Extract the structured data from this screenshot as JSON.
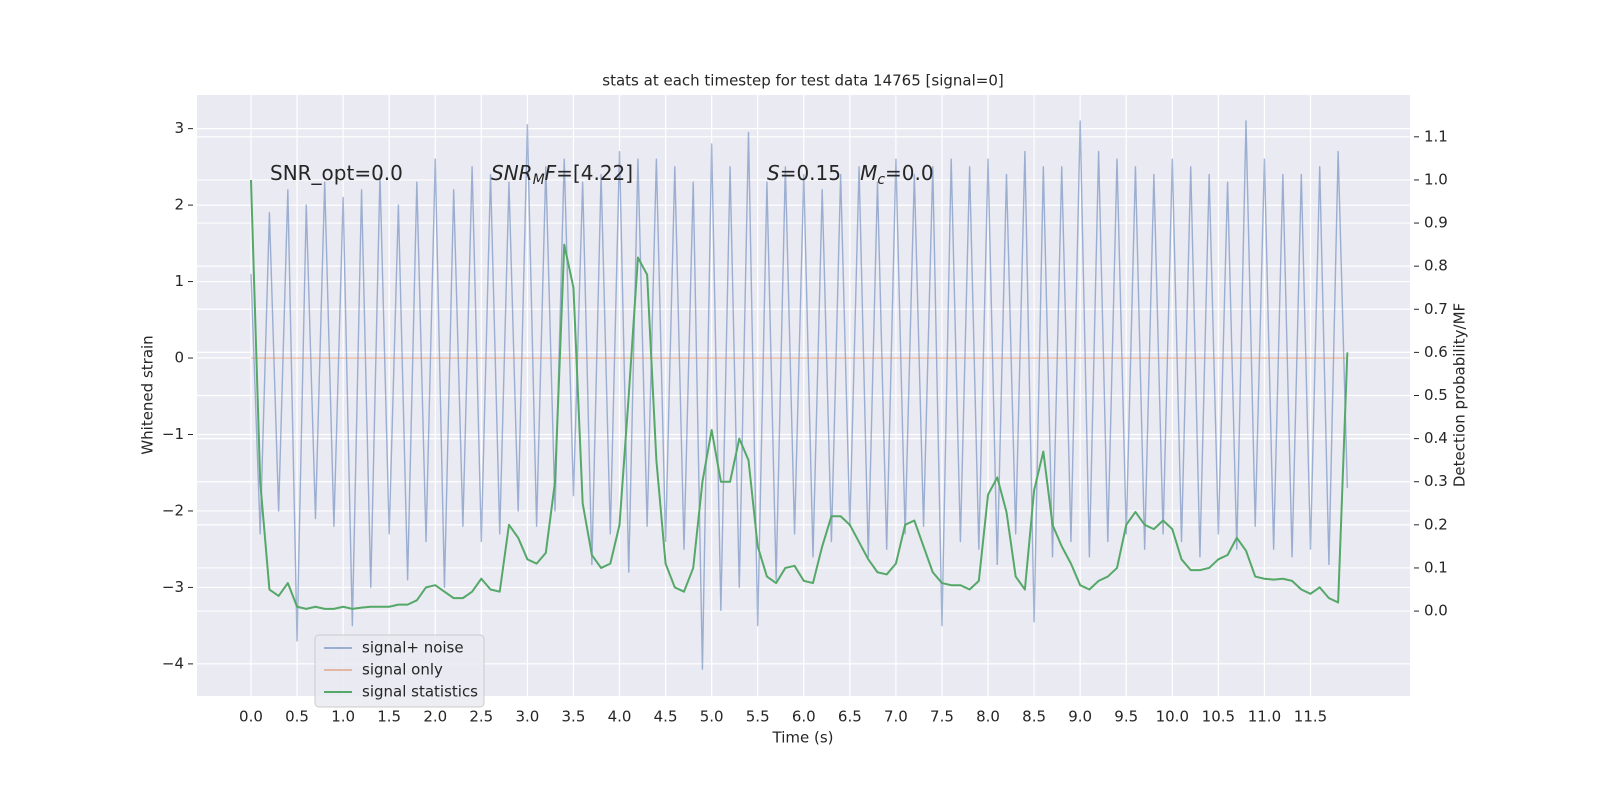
{
  "chart_data": {
    "type": "line",
    "title": "stats at each timestep for test data 14765 [signal=0]",
    "xlabel": "Time (s)",
    "ylabel": "Whitened strain",
    "y2label": "Detection probability/MF",
    "annotations": [
      [
        {
          "text": "SNR_opt=0.0",
          "style": "normal"
        }
      ],
      [
        {
          "text": "SNR",
          "style": "italic"
        },
        {
          "text": "M",
          "style": "sub"
        },
        {
          "text": "F",
          "style": "italic"
        },
        {
          "text": "=[4.22]",
          "style": "normal"
        }
      ],
      [
        {
          "text": "S",
          "style": "italic"
        },
        {
          "text": "=0.15   ",
          "style": "normal"
        },
        {
          "text": "M",
          "style": "italic"
        },
        {
          "text": "c",
          "style": "sub"
        },
        {
          "text": "=0.0",
          "style": "normal"
        }
      ]
    ],
    "x": [
      0.0,
      0.1,
      0.2,
      0.3,
      0.4,
      0.5,
      0.6,
      0.7,
      0.8,
      0.9,
      1.0,
      1.1,
      1.2,
      1.3,
      1.4,
      1.5,
      1.6,
      1.7,
      1.8,
      1.9,
      2.0,
      2.1,
      2.2,
      2.3,
      2.4,
      2.5,
      2.6,
      2.7,
      2.8,
      2.9,
      3.0,
      3.1,
      3.2,
      3.3,
      3.4,
      3.5,
      3.6,
      3.7,
      3.8,
      3.9,
      4.0,
      4.1,
      4.2,
      4.3,
      4.4,
      4.5,
      4.6,
      4.7,
      4.8,
      4.9,
      5.0,
      5.1,
      5.2,
      5.3,
      5.4,
      5.5,
      5.6,
      5.7,
      5.8,
      5.9,
      6.0,
      6.1,
      6.2,
      6.3,
      6.4,
      6.5,
      6.6,
      6.7,
      6.8,
      6.9,
      7.0,
      7.1,
      7.2,
      7.3,
      7.4,
      7.5,
      7.6,
      7.7,
      7.8,
      7.9,
      8.0,
      8.1,
      8.2,
      8.3,
      8.4,
      8.5,
      8.6,
      8.7,
      8.8,
      8.9,
      9.0,
      9.1,
      9.2,
      9.3,
      9.4,
      9.5,
      9.6,
      9.7,
      9.8,
      9.9,
      10.0,
      10.1,
      10.2,
      10.3,
      10.4,
      10.5,
      10.6,
      10.7,
      10.8,
      10.9,
      11.0,
      11.1,
      11.2,
      11.3,
      11.4,
      11.5,
      11.6,
      11.7,
      11.8,
      11.9
    ],
    "series": [
      {
        "name": "signal+ noise",
        "color": "#4c72b0",
        "alpha": 0.5,
        "values": [
          1.1,
          -2.3,
          1.9,
          -2.0,
          2.2,
          -3.7,
          2.0,
          -2.1,
          2.3,
          -2.2,
          2.1,
          -3.5,
          2.2,
          -3.0,
          2.4,
          -2.3,
          2.0,
          -2.9,
          2.3,
          -2.4,
          2.6,
          -3.0,
          2.2,
          -2.2,
          2.5,
          -2.4,
          2.4,
          -2.3,
          2.3,
          -2.0,
          3.05,
          -2.2,
          2.5,
          -2.0,
          2.6,
          -1.8,
          2.3,
          -2.7,
          2.4,
          -2.3,
          2.7,
          -2.8,
          2.6,
          -2.2,
          2.6,
          -2.4,
          2.5,
          -2.5,
          2.3,
          -4.07,
          2.8,
          -3.3,
          2.5,
          -3.0,
          2.95,
          -3.5,
          2.3,
          -2.9,
          2.5,
          -2.3,
          2.4,
          -2.6,
          2.2,
          -2.4,
          2.4,
          -2.2,
          2.5,
          -2.6,
          2.3,
          -2.5,
          2.6,
          -2.3,
          2.4,
          -2.2,
          2.5,
          -3.5,
          2.6,
          -2.4,
          2.5,
          -2.5,
          2.6,
          -2.7,
          2.4,
          -2.3,
          2.7,
          -3.45,
          2.5,
          -2.6,
          2.5,
          -2.4,
          3.1,
          -2.6,
          2.7,
          -2.4,
          2.6,
          -2.3,
          2.5,
          -2.5,
          2.4,
          -2.3,
          2.6,
          -2.4,
          2.5,
          -2.6,
          2.4,
          -2.3,
          2.3,
          -2.5,
          3.1,
          -2.2,
          2.6,
          -2.5,
          2.4,
          -2.6,
          2.4,
          -2.5,
          2.5,
          -2.7,
          2.7,
          -1.7
        ]
      },
      {
        "name": "signal only",
        "color": "#dd8452",
        "alpha": 0.5,
        "values": [
          0,
          0,
          0,
          0,
          0,
          0,
          0,
          0,
          0,
          0,
          0,
          0,
          0,
          0,
          0,
          0,
          0,
          0,
          0,
          0,
          0,
          0,
          0,
          0,
          0,
          0,
          0,
          0,
          0,
          0,
          0,
          0,
          0,
          0,
          0,
          0,
          0,
          0,
          0,
          0,
          0,
          0,
          0,
          0,
          0,
          0,
          0,
          0,
          0,
          0,
          0,
          0,
          0,
          0,
          0,
          0,
          0,
          0,
          0,
          0,
          0,
          0,
          0,
          0,
          0,
          0,
          0,
          0,
          0,
          0,
          0,
          0,
          0,
          0,
          0,
          0,
          0,
          0,
          0,
          0,
          0,
          0,
          0,
          0,
          0,
          0,
          0,
          0,
          0,
          0,
          0,
          0,
          0,
          0,
          0,
          0,
          0,
          0,
          0,
          0,
          0,
          0,
          0,
          0,
          0,
          0,
          0,
          0,
          0,
          0,
          0,
          0,
          0,
          0,
          0,
          0,
          0,
          0,
          0,
          0
        ]
      },
      {
        "name": "signal statistics",
        "color": "#55a868",
        "alpha": 1,
        "axis": "y2",
        "values": [
          1.0,
          0.3,
          0.05,
          0.035,
          0.065,
          0.01,
          0.005,
          0.01,
          0.005,
          0.005,
          0.01,
          0.005,
          0.008,
          0.01,
          0.01,
          0.01,
          0.015,
          0.015,
          0.025,
          0.055,
          0.06,
          0.045,
          0.03,
          0.03,
          0.045,
          0.075,
          0.05,
          0.045,
          0.2,
          0.17,
          0.12,
          0.11,
          0.135,
          0.3,
          0.85,
          0.75,
          0.25,
          0.13,
          0.1,
          0.11,
          0.2,
          0.5,
          0.82,
          0.78,
          0.35,
          0.11,
          0.055,
          0.045,
          0.1,
          0.3,
          0.42,
          0.3,
          0.3,
          0.4,
          0.35,
          0.15,
          0.08,
          0.065,
          0.1,
          0.105,
          0.07,
          0.065,
          0.15,
          0.22,
          0.22,
          0.2,
          0.16,
          0.12,
          0.09,
          0.085,
          0.11,
          0.2,
          0.21,
          0.15,
          0.09,
          0.065,
          0.06,
          0.06,
          0.05,
          0.07,
          0.27,
          0.31,
          0.23,
          0.08,
          0.05,
          0.28,
          0.37,
          0.2,
          0.15,
          0.11,
          0.06,
          0.05,
          0.07,
          0.08,
          0.1,
          0.2,
          0.23,
          0.2,
          0.19,
          0.21,
          0.19,
          0.12,
          0.095,
          0.095,
          0.1,
          0.12,
          0.13,
          0.17,
          0.14,
          0.08,
          0.075,
          0.073,
          0.075,
          0.07,
          0.05,
          0.04,
          0.055,
          0.03,
          0.02,
          0.6
        ]
      }
    ],
    "xlim": [
      -0.586,
      12.58
    ],
    "xticks": [
      {
        "value": 0,
        "label": "0.0"
      },
      0.5,
      {
        "value": 1,
        "label": "1.0"
      },
      1.5,
      {
        "value": 2,
        "label": "2.0"
      },
      2.5,
      {
        "value": 3,
        "label": "3.0"
      },
      3.5,
      {
        "value": 4,
        "label": "4.0"
      },
      4.5,
      {
        "value": 5,
        "label": "5.0"
      },
      5.5,
      {
        "value": 6,
        "label": "6.0"
      },
      6.5,
      {
        "value": 7,
        "label": "7.0"
      },
      7.5,
      {
        "value": 8,
        "label": "8.0"
      },
      8.5,
      {
        "value": 9,
        "label": "9.0"
      },
      9.5,
      {
        "value": 10,
        "label": "10.0"
      },
      10.5,
      {
        "value": 11,
        "label": "11.0"
      },
      11.5
    ],
    "ylim": [
      -4.42,
      3.44
    ],
    "yticks": [
      {
        "value": -4,
        "label": "−4"
      },
      {
        "value": -3,
        "label": "−3"
      },
      {
        "value": -2,
        "label": "−2"
      },
      {
        "value": -1,
        "label": "−1"
      },
      0,
      1,
      2,
      3
    ],
    "y2lim": [
      -0.197,
      1.197
    ],
    "y2ticks": [
      {
        "value": 0,
        "label": "0.0"
      },
      0.1,
      0.2,
      0.3,
      0.4,
      0.5,
      0.6,
      0.7,
      0.8,
      0.9,
      {
        "value": 1,
        "label": "1.0"
      },
      1.1
    ],
    "grid": true,
    "legend": "lower left"
  }
}
